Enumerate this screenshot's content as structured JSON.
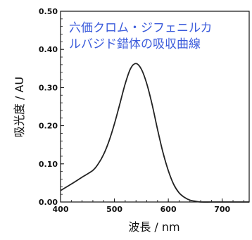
{
  "chart_data": {
    "type": "line",
    "title": "",
    "annotation": [
      "六価クロム・ジフェニルカ",
      "ルバジド錯体の吸収曲線"
    ],
    "xlabel": "波長 / nm",
    "ylabel": "吸光度 / AU",
    "xlim": [
      400,
      750
    ],
    "ylim": [
      0,
      0.5
    ],
    "xticks": [
      "400",
      "500",
      "600",
      "700"
    ],
    "yticks": [
      "0.00",
      "0.10",
      "0.20",
      "0.30",
      "0.40",
      "0.50"
    ],
    "grid": false,
    "series": [
      {
        "color": "#222222",
        "x": [
          400,
          420,
          440,
          460,
          470,
          480,
          490,
          500,
          510,
          520,
          530,
          540,
          550,
          560,
          570,
          580,
          590,
          600,
          610,
          620,
          630,
          640,
          650,
          660,
          680,
          700,
          750
        ],
        "y": [
          0.03,
          0.047,
          0.065,
          0.083,
          0.1,
          0.125,
          0.16,
          0.205,
          0.257,
          0.31,
          0.35,
          0.363,
          0.348,
          0.31,
          0.255,
          0.19,
          0.13,
          0.082,
          0.046,
          0.024,
          0.012,
          0.005,
          0.002,
          0.0,
          0.0,
          0.0,
          0.0
        ]
      }
    ]
  }
}
